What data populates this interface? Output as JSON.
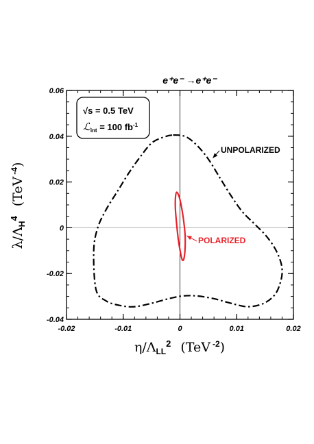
{
  "chart_data": {
    "type": "line",
    "title": "e⁺e⁻ →e⁺e⁻",
    "xlabel": {
      "prefix": "η/Λ",
      "sub": "LL",
      "sup": "2",
      "unit": "(TeV",
      "unit_exp": "-2",
      "close": ")"
    },
    "ylabel": {
      "prefix": "λ/Λ",
      "sub": "H",
      "sup": "4",
      "unit": "(TeV",
      "unit_exp": "-4",
      "close": ")"
    },
    "xlim": [
      -0.02,
      0.02
    ],
    "ylim": [
      -0.04,
      0.06
    ],
    "x_ticks": [
      -0.02,
      -0.01,
      0,
      0.01,
      0.02
    ],
    "x_tick_labels": [
      "-0.02",
      "-0.01",
      "0",
      "0.01",
      "0.02"
    ],
    "y_ticks": [
      -0.04,
      -0.02,
      0,
      0.02,
      0.04,
      0.06
    ],
    "y_tick_labels": [
      "-0.04",
      "-0.02",
      "0",
      "0.02",
      "0.04",
      "0.06"
    ],
    "info_box": {
      "line1": "√s = 0.5 TeV",
      "line2_prefix": "ℒ",
      "line2_sub": "int",
      "line2_mid": " = 100 fb",
      "line2_sup": "-1"
    },
    "series": [
      {
        "name": "UNPOLARIZED",
        "color": "#000000",
        "style": "dash-dot",
        "x": [
          -0.0012,
          0.001,
          0.003,
          0.005,
          0.007,
          0.009,
          0.011,
          0.013,
          0.015,
          0.0165,
          0.0175,
          0.018,
          0.0178,
          0.0168,
          0.0148,
          0.012,
          0.009,
          0.006,
          0.003,
          0.0005,
          -0.002,
          -0.005,
          -0.008,
          -0.0105,
          -0.013,
          -0.0148,
          -0.0152,
          -0.0145,
          -0.013,
          -0.011,
          -0.009,
          -0.007,
          -0.005,
          -0.003,
          -0.0012
        ],
        "y": [
          0.0405,
          0.0398,
          0.036,
          0.03,
          0.022,
          0.014,
          0.007,
          0.002,
          -0.003,
          -0.008,
          -0.013,
          -0.018,
          -0.023,
          -0.029,
          -0.033,
          -0.0345,
          -0.033,
          -0.031,
          -0.0298,
          -0.0298,
          -0.031,
          -0.033,
          -0.0345,
          -0.034,
          -0.032,
          -0.027,
          -0.01,
          0.0,
          0.008,
          0.016,
          0.024,
          0.031,
          0.037,
          0.0395,
          0.0405
        ]
      },
      {
        "name": "POLARIZED",
        "color": "#e8232a",
        "style": "solid",
        "x": [
          -0.0006,
          -0.0002,
          0.0002,
          0.0006,
          0.0009,
          0.0009,
          0.0007,
          0.0004,
          0.0001,
          -0.0003,
          -0.0006,
          -0.0008,
          -0.0008,
          -0.0006
        ],
        "y": [
          0.0155,
          0.014,
          0.01,
          0.004,
          -0.003,
          -0.009,
          -0.0135,
          -0.014,
          -0.011,
          -0.005,
          0.002,
          0.008,
          0.013,
          0.0155
        ]
      }
    ],
    "annotations": [
      {
        "text": "UNPOLARIZED",
        "color": "#000000",
        "points_to": [
          0.0058,
          0.0305
        ]
      },
      {
        "text": "POLARIZED",
        "color": "#e8232a",
        "points_to": [
          0.0012,
          -0.0035
        ]
      }
    ],
    "grid": false,
    "zero_lines": true
  }
}
